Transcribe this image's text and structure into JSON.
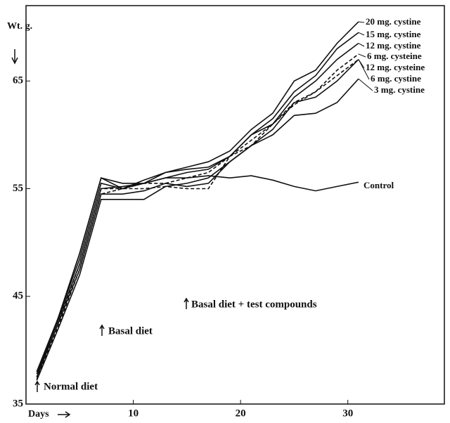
{
  "chart_data": {
    "type": "line",
    "ylabel": "Wt. g.",
    "xlabel": "Days",
    "annotations": [
      "Normal diet",
      "Basal diet",
      "Basal diet + test compounds"
    ],
    "x": [
      1,
      3,
      5,
      7,
      9,
      11,
      13,
      15,
      17,
      19,
      21,
      23,
      25,
      27,
      29,
      31
    ],
    "series": [
      {
        "name": "20 mg. cystine",
        "color": "#111",
        "dashed": false,
        "values": [
          37.5,
          43,
          49,
          56,
          55,
          55.5,
          56.5,
          57,
          57.5,
          58.5,
          60.5,
          62,
          65,
          66,
          68.5,
          70.5
        ]
      },
      {
        "name": "15 mg. cystine",
        "color": "#111",
        "dashed": false,
        "values": [
          38,
          43,
          48.5,
          55.5,
          55,
          55.8,
          56.5,
          56.8,
          57,
          58,
          60,
          61.5,
          64,
          65.5,
          68,
          69.5
        ]
      },
      {
        "name": "12 mg. cystine",
        "color": "#111",
        "dashed": false,
        "values": [
          37.8,
          42.8,
          48,
          55,
          55.2,
          55.5,
          56,
          56.5,
          56.8,
          58,
          60,
          61,
          63.5,
          65,
          67,
          68.5
        ]
      },
      {
        "name": "6 mg. cysteine",
        "color": "#111",
        "dashed": true,
        "values": [
          37.5,
          42.5,
          48,
          55,
          55,
          55.5,
          55.5,
          56,
          56.5,
          58,
          59.5,
          61,
          63,
          64,
          66,
          67.5
        ]
      },
      {
        "name": "12 mg. cysteine",
        "color": "#111",
        "dashed": true,
        "values": [
          37.3,
          42.2,
          47.5,
          54.5,
          55,
          55,
          55.2,
          55,
          55,
          58,
          59,
          61,
          62.8,
          64,
          65.5,
          67
        ]
      },
      {
        "name": "6 mg. cystine",
        "color": "#111",
        "dashed": false,
        "values": [
          37.5,
          42.5,
          47.5,
          54.5,
          54.5,
          54.8,
          55.5,
          55.2,
          55.5,
          57.5,
          59,
          60.5,
          63,
          63.5,
          65,
          67
        ]
      },
      {
        "name": "3 mg. cystine",
        "color": "#111",
        "dashed": false,
        "values": [
          37.2,
          42,
          47,
          54,
          54,
          54,
          55.2,
          55.5,
          56,
          57.5,
          59,
          60,
          61.8,
          62,
          63,
          65.2
        ]
      },
      {
        "name": "Control",
        "color": "#111",
        "dashed": false,
        "values": [
          38,
          43,
          49,
          56,
          55.5,
          55.5,
          56,
          56,
          56.2,
          56,
          56.2,
          55.8,
          55.2,
          54.8,
          55.2,
          55.6
        ]
      }
    ],
    "xlim": [
      0,
      39
    ],
    "xticks": [
      10,
      20,
      30
    ],
    "ylim": [
      35,
      72
    ],
    "yticks": [
      35,
      45,
      55,
      65
    ]
  }
}
